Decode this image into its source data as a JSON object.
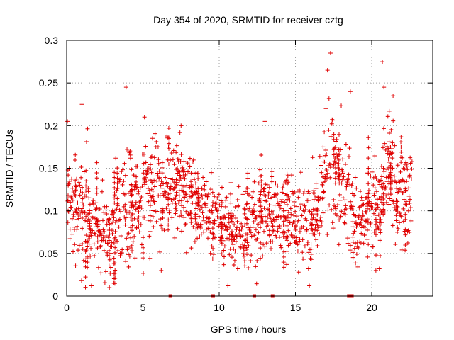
{
  "chart_data": {
    "type": "scatter",
    "title": "Day 354 of 2020, SRMTID for receiver cztg",
    "xlabel": "GPS time / hours",
    "ylabel": "SRMTID / TECUs",
    "xlim": [
      0,
      24
    ],
    "ylim": [
      0,
      0.3
    ],
    "xticks": [
      0,
      5,
      10,
      15,
      20
    ],
    "yticks": [
      0,
      0.05,
      0.1,
      0.15,
      0.2,
      0.25,
      0.3
    ],
    "grid": true,
    "marker": "+",
    "color": "#e00000",
    "trend": {
      "x": [
        0,
        0.5,
        1,
        1.5,
        2,
        2.5,
        3,
        3.5,
        4,
        4.5,
        5,
        5.5,
        6,
        6.5,
        7,
        7.5,
        8,
        8.5,
        9,
        9.5,
        10,
        10.5,
        11,
        11.5,
        12,
        12.5,
        13,
        13.5,
        14,
        14.5,
        15,
        15.5,
        16,
        16.5,
        17,
        17.5,
        18,
        18.5,
        19,
        19.5,
        20,
        20.5,
        21,
        21.5,
        22,
        22.5
      ],
      "y": [
        0.11,
        0.105,
        0.1,
        0.095,
        0.085,
        0.075,
        0.07,
        0.085,
        0.105,
        0.11,
        0.125,
        0.13,
        0.12,
        0.125,
        0.13,
        0.135,
        0.12,
        0.11,
        0.1,
        0.095,
        0.09,
        0.08,
        0.07,
        0.075,
        0.085,
        0.09,
        0.1,
        0.095,
        0.09,
        0.1,
        0.095,
        0.09,
        0.085,
        0.1,
        0.14,
        0.145,
        0.13,
        0.115,
        0.085,
        0.085,
        0.105,
        0.12,
        0.14,
        0.135,
        0.12,
        0.12
      ],
      "spread": [
        0.04,
        0.035,
        0.04,
        0.035,
        0.035,
        0.03,
        0.03,
        0.04,
        0.045,
        0.04,
        0.04,
        0.035,
        0.035,
        0.035,
        0.035,
        0.035,
        0.035,
        0.03,
        0.03,
        0.03,
        0.03,
        0.028,
        0.025,
        0.028,
        0.03,
        0.03,
        0.035,
        0.035,
        0.03,
        0.035,
        0.03,
        0.03,
        0.03,
        0.035,
        0.045,
        0.05,
        0.045,
        0.04,
        0.025,
        0.03,
        0.035,
        0.04,
        0.045,
        0.04,
        0.04,
        0.035
      ]
    },
    "point_count": 1300,
    "outliers": [
      {
        "x": 0.05,
        "y": 0.205
      },
      {
        "x": 1.0,
        "y": 0.225
      },
      {
        "x": 3.9,
        "y": 0.245
      },
      {
        "x": 5.1,
        "y": 0.21
      },
      {
        "x": 7.5,
        "y": 0.2
      },
      {
        "x": 13.0,
        "y": 0.205
      },
      {
        "x": 17.0,
        "y": 0.22
      },
      {
        "x": 17.3,
        "y": 0.285
      },
      {
        "x": 17.1,
        "y": 0.265
      },
      {
        "x": 18.6,
        "y": 0.24
      },
      {
        "x": 20.7,
        "y": 0.275
      },
      {
        "x": 20.8,
        "y": 0.245
      },
      {
        "x": 21.4,
        "y": 0.235
      },
      {
        "x": 2.8,
        "y": 0.01
      },
      {
        "x": 3.1,
        "y": 0.015
      },
      {
        "x": 6.2,
        "y": 0.03
      },
      {
        "x": 15.2,
        "y": 0.028
      },
      {
        "x": 20.5,
        "y": 0.032
      }
    ],
    "baseline_markers": [
      6.8,
      9.6,
      12.3,
      13.5,
      18.5,
      18.6,
      18.7
    ]
  }
}
